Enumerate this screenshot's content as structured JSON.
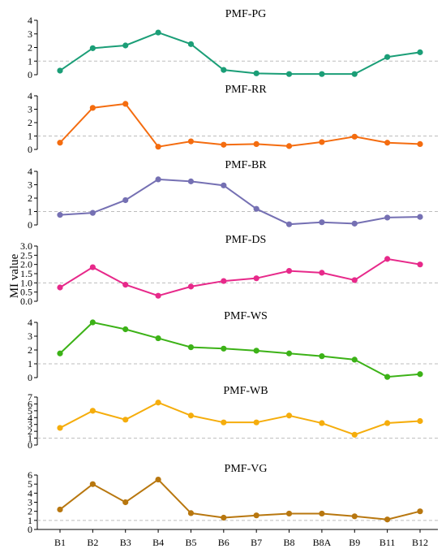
{
  "chart_data": {
    "type": "line",
    "ylabel": "MI value",
    "categories": [
      "B1",
      "B2",
      "B3",
      "B4",
      "B5",
      "B6",
      "B7",
      "B8",
      "B8A",
      "B9",
      "B11",
      "B12"
    ],
    "reference_line": 1,
    "grid": false,
    "panels": [
      {
        "title": "PMF-PG",
        "color": "#1b9e77",
        "ylim": [
          0,
          4
        ],
        "yticks": [
          "0",
          "1",
          "2",
          "3",
          "4"
        ],
        "values": [
          0.3,
          1.95,
          2.15,
          3.1,
          2.25,
          0.35,
          0.1,
          0.05,
          0.05,
          0.05,
          1.3,
          1.65
        ]
      },
      {
        "title": "PMF-RR",
        "color": "#f46c0f",
        "ylim": [
          0,
          4
        ],
        "yticks": [
          "0",
          "1",
          "2",
          "3",
          "4"
        ],
        "values": [
          0.5,
          3.1,
          3.4,
          0.2,
          0.6,
          0.35,
          0.4,
          0.25,
          0.55,
          0.95,
          0.5,
          0.4
        ]
      },
      {
        "title": "PMF-BR",
        "color": "#7570b3",
        "ylim": [
          0,
          4
        ],
        "yticks": [
          "0",
          "1",
          "2",
          "3",
          "4"
        ],
        "values": [
          0.75,
          0.9,
          1.85,
          3.4,
          3.25,
          2.95,
          1.2,
          0.05,
          0.2,
          0.1,
          0.55,
          0.6
        ]
      },
      {
        "title": "PMF-DS",
        "color": "#e7298a",
        "ylim": [
          0,
          3
        ],
        "yticks": [
          "0.0",
          "0.5",
          "1.0",
          "1.5",
          "2.0",
          "2.5",
          "3.0"
        ],
        "values": [
          0.75,
          1.85,
          0.9,
          0.3,
          0.8,
          1.1,
          1.25,
          1.65,
          1.55,
          1.15,
          2.3,
          2.0
        ]
      },
      {
        "title": "PMF-WS",
        "color": "#3cb217",
        "ylim": [
          0,
          4
        ],
        "yticks": [
          "0",
          "1",
          "2",
          "3",
          "4"
        ],
        "values": [
          1.75,
          4.0,
          3.5,
          2.85,
          2.2,
          2.1,
          1.95,
          1.75,
          1.55,
          1.3,
          0.05,
          0.25
        ]
      },
      {
        "title": "PMF-WB",
        "color": "#f5ad0c",
        "ylim": [
          0,
          7
        ],
        "yticks": [
          "0",
          "1",
          "2",
          "3",
          "4",
          "5",
          "6",
          "7"
        ],
        "values": [
          2.5,
          5.0,
          3.7,
          6.2,
          4.3,
          3.3,
          3.3,
          4.3,
          3.2,
          1.5,
          3.2,
          3.5
        ]
      },
      {
        "title": "PMF-VG",
        "color": "#b8770f",
        "ylim": [
          0,
          6
        ],
        "yticks": [
          "0",
          "1",
          "2",
          "3",
          "4",
          "5",
          "6"
        ],
        "values": [
          2.2,
          5.0,
          3.0,
          5.5,
          1.8,
          1.3,
          1.55,
          1.75,
          1.75,
          1.45,
          1.1,
          2.0
        ]
      }
    ]
  }
}
